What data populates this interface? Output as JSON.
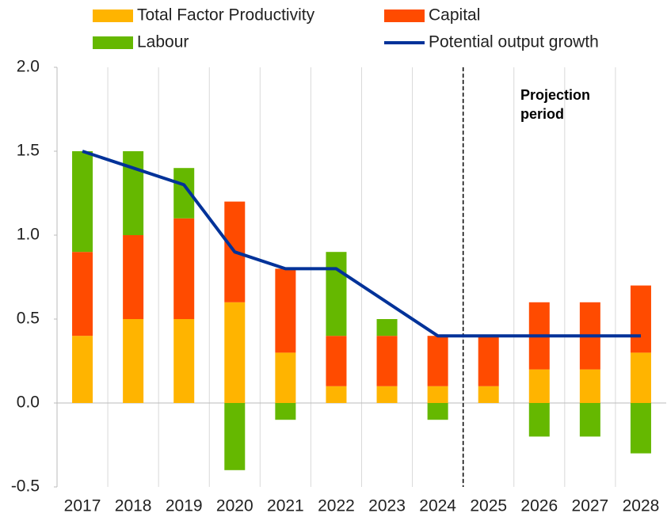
{
  "chart_data": {
    "type": "stacked_bar_line",
    "categories": [
      "2017",
      "2018",
      "2019",
      "2020",
      "2021",
      "2022",
      "2023",
      "2024",
      "2025",
      "2026",
      "2027",
      "2028"
    ],
    "series": [
      {
        "name": "Total Factor Productivity",
        "color": "#FFB400",
        "values": [
          0.4,
          0.5,
          0.5,
          0.6,
          0.3,
          0.1,
          0.1,
          0.1,
          0.1,
          0.2,
          0.2,
          0.3
        ]
      },
      {
        "name": "Capital",
        "color": "#FF4B00",
        "values": [
          0.5,
          0.5,
          0.6,
          0.6,
          0.5,
          0.3,
          0.3,
          0.3,
          0.3,
          0.4,
          0.4,
          0.4
        ]
      },
      {
        "name": "Labour",
        "color": "#65B800",
        "values": [
          0.6,
          0.5,
          0.3,
          -0.4,
          -0.1,
          0.5,
          0.1,
          -0.1,
          0,
          -0.2,
          -0.2,
          -0.3
        ]
      },
      {
        "name": "Potential output growth",
        "color": "#003299",
        "type": "line",
        "values": [
          1.5,
          1.4,
          1.3,
          0.9,
          0.8,
          0.8,
          0.6,
          0.4,
          0.4,
          0.4,
          0.4,
          0.4
        ]
      }
    ],
    "ylim": [
      -0.5,
      2.0
    ],
    "yticks": [
      {
        "value": 2.0,
        "label": "2.0"
      },
      {
        "value": 1.5,
        "label": "1.5"
      },
      {
        "value": 1.0,
        "label": "1.0"
      },
      {
        "value": 0.5,
        "label": "0.5"
      },
      {
        "value": 0,
        "label": "0.0"
      },
      {
        "value": -0.5,
        "label": "-0.5"
      }
    ],
    "annotation": [
      "Projection",
      "period"
    ],
    "projection_from": "2025"
  }
}
